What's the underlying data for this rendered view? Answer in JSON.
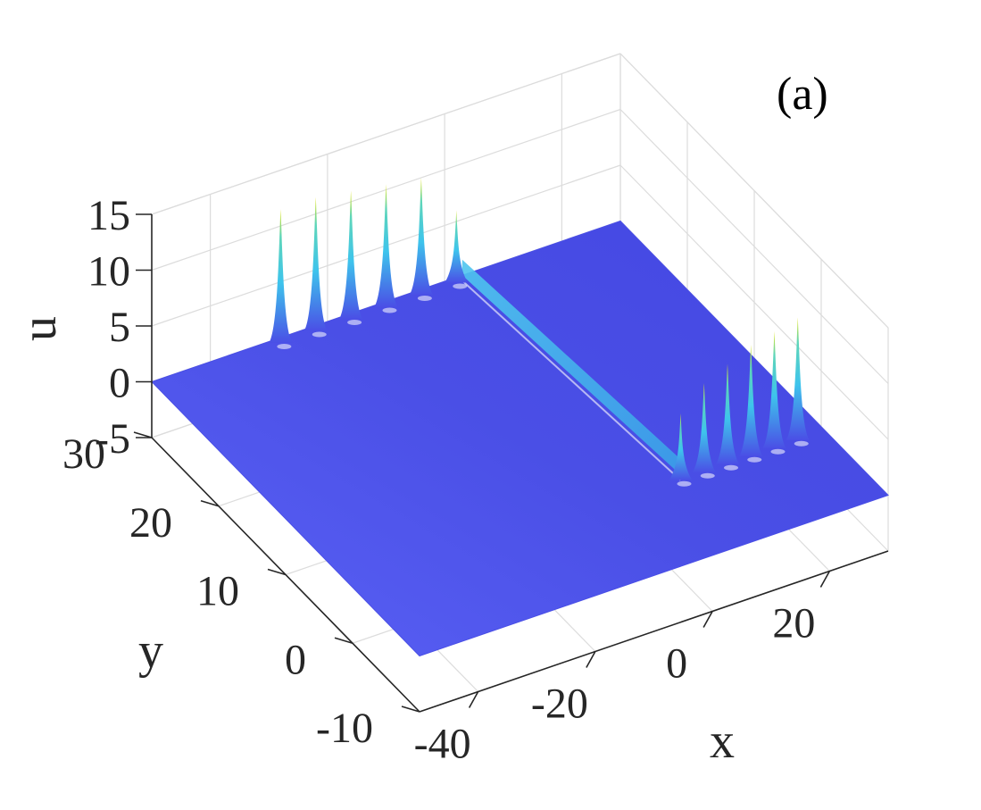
{
  "chart_data": {
    "type": "surface",
    "panel_label": "(a)",
    "xlabel": "x",
    "ylabel": "y",
    "zlabel": "u",
    "x_ticks": [
      "-40",
      "-20",
      "0",
      "20"
    ],
    "y_ticks": [
      "-10",
      "0",
      "10",
      "20",
      "30"
    ],
    "z_ticks": [
      "-5",
      "0",
      "5",
      "10",
      "15"
    ],
    "x_tick_values": [
      -40,
      -20,
      0,
      20
    ],
    "y_tick_values": [
      -10,
      0,
      10,
      20,
      30
    ],
    "z_tick_values": [
      -5,
      0,
      5,
      10,
      15
    ],
    "xlim": [
      -50,
      30
    ],
    "ylim": [
      -10,
      30
    ],
    "zlim": [
      -5,
      15
    ],
    "grid": true,
    "colormap": "parula",
    "colors": {
      "surface_base": "#4a4fe6",
      "ridge": "#4fc6ef",
      "peak_tip": "#e6e61a"
    },
    "peaks": [
      {
        "x": -28,
        "y": 30,
        "u": 11.5
      },
      {
        "x": -22,
        "y": 30,
        "u": 11.5
      },
      {
        "x": -16,
        "y": 30,
        "u": 11.0
      },
      {
        "x": -10,
        "y": 30,
        "u": 10.5
      },
      {
        "x": -4,
        "y": 30,
        "u": 10.0
      },
      {
        "x": 2,
        "y": 30,
        "u": 6.0
      },
      {
        "x": 6,
        "y": 0,
        "u": 5.5
      },
      {
        "x": 10,
        "y": 0,
        "u": 7.5
      },
      {
        "x": 14,
        "y": 0,
        "u": 8.5
      },
      {
        "x": 18,
        "y": 0,
        "u": 9.5
      },
      {
        "x": 22,
        "y": 0,
        "u": 10.0
      },
      {
        "x": 26,
        "y": 0,
        "u": 10.5
      }
    ]
  }
}
